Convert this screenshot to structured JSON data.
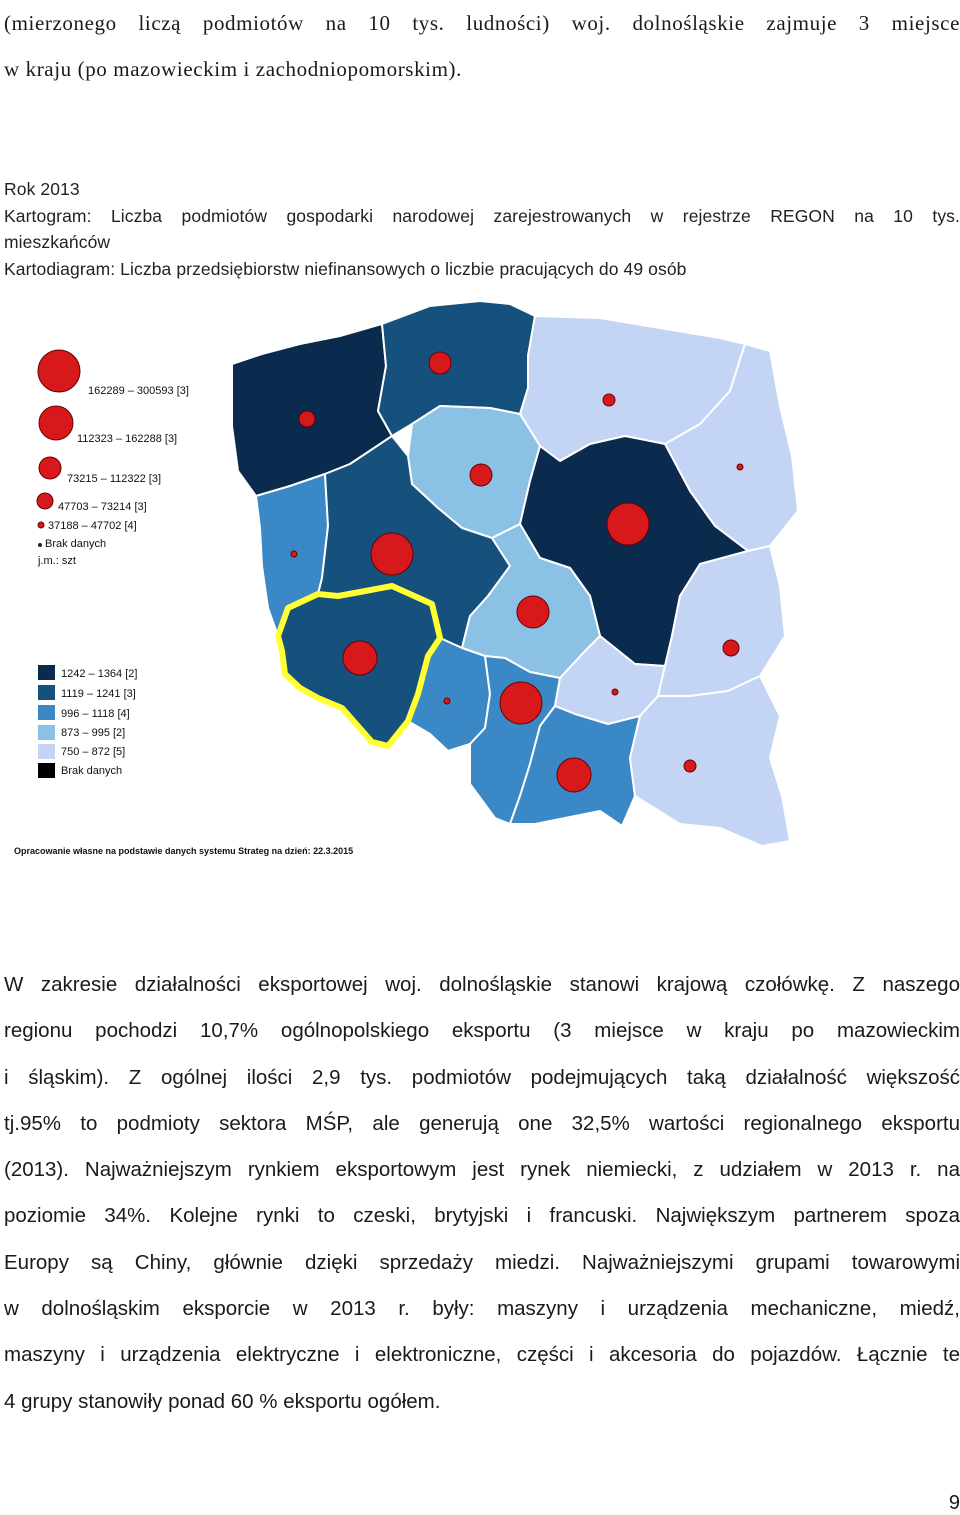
{
  "intro": {
    "lines": [
      "(mierzonego liczą podmiotów na 10 tys. ludności) woj. dolnośląskie zajmuje 3 miejsce",
      "w kraju (po mazowieckim i zachodniopomorskim)."
    ]
  },
  "caption": {
    "lines": [
      "Rok 2013",
      "Kartogram: Liczba podmiotów gospodarki narodowej zarejestrowanych w rejestrze REGON na 10 tys.",
      "mieszkańców",
      "Kartodiagram: Liczba przedsiębiorstw niefinansowych o liczbie pracujących do 49 osób"
    ]
  },
  "map": {
    "circle_legend": [
      {
        "label": "162289 – 300593 [3]"
      },
      {
        "label": "112323 – 162288 [3]"
      },
      {
        "label": "73215 – 112322 [3]"
      },
      {
        "label": "47703 – 73214 [3]"
      },
      {
        "label": "37188 – 47702 [4]"
      },
      {
        "label": "Brak danych"
      }
    ],
    "unit": "j.m.: szt",
    "color_legend": [
      {
        "label": "1242 – 1364 [2]",
        "color": "#0a2a4e"
      },
      {
        "label": "1119 – 1241 [3]",
        "color": "#16507d"
      },
      {
        "label": "996 – 1118 [4]",
        "color": "#3b88c6"
      },
      {
        "label": "873 – 995 [2]",
        "color": "#8cc1e6"
      },
      {
        "label": "750 – 872 [5]",
        "color": "#c4d4f4"
      },
      {
        "label": "Brak danych",
        "color": "#000000"
      }
    ],
    "highlight_color": "#ffff33",
    "circle_color": "#d7191c",
    "source": "Opracowanie własne na podstawie danych systemu Strateg na dzień: 22.3.2015"
  },
  "body": {
    "lines": [
      "W zakresie działalności eksportowej woj. dolnośląskie stanowi krajową czołówkę. Z naszego",
      "regionu pochodzi 10,7% ogólnopolskiego eksportu (3 miejsce w kraju po mazowieckim",
      "i śląskim). Z ogólnej ilości 2,9 tys. podmiotów podejmujących taką działalność większość",
      "tj.95% to podmioty sektora MŚP, ale generują one 32,5% wartości regionalnego eksportu",
      "(2013). Najważniejszym rynkiem eksportowym jest rynek niemiecki, z udziałem w 2013 r. na",
      "poziomie 34%. Kolejne rynki to czeski, brytyjski i francuski. Największym partnerem spoza",
      "Europy są Chiny, głównie dzięki sprzedaży miedzi. Najważniejszymi grupami towarowymi",
      "w dolnośląskim eksporcie w 2013 r. były: maszyny i urządzenia mechaniczne, miedź,",
      "maszyny i urządzenia elektryczne i elektroniczne, części i akcesoria do pojazdów. Łącznie te",
      "4 grupy stanowiły ponad 60 % eksportu ogółem."
    ]
  },
  "page_number": "9"
}
